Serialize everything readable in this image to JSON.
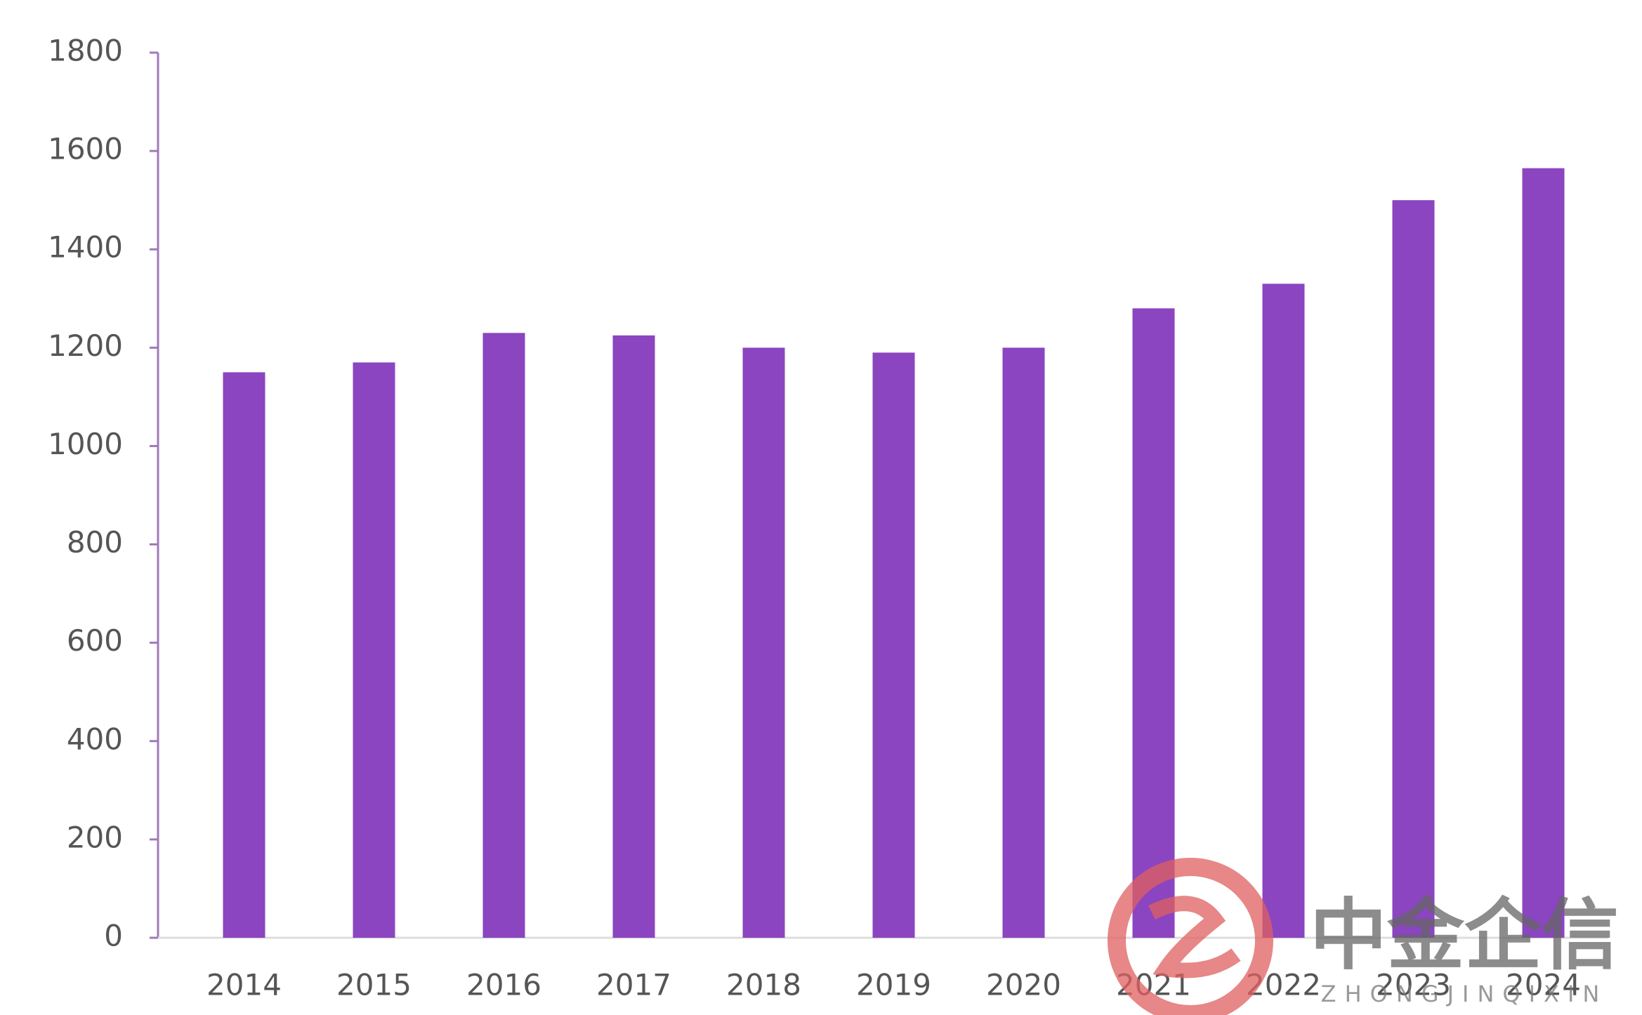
{
  "chart_data": {
    "type": "bar",
    "categories": [
      "2014",
      "2015",
      "2016",
      "2017",
      "2018",
      "2019",
      "2020",
      "2021",
      "2022",
      "2023",
      "2024"
    ],
    "values": [
      1150,
      1170,
      1230,
      1225,
      1200,
      1190,
      1200,
      1280,
      1330,
      1500,
      1565
    ],
    "color": "#8b45c0",
    "ylim": [
      0,
      1800
    ],
    "yticks": [
      0,
      200,
      400,
      600,
      800,
      1000,
      1200,
      1400,
      1600,
      1800
    ],
    "grid": false
  },
  "watermark": {
    "title": "中金企信",
    "subtitle": "ZHONGJINQIXIN"
  }
}
